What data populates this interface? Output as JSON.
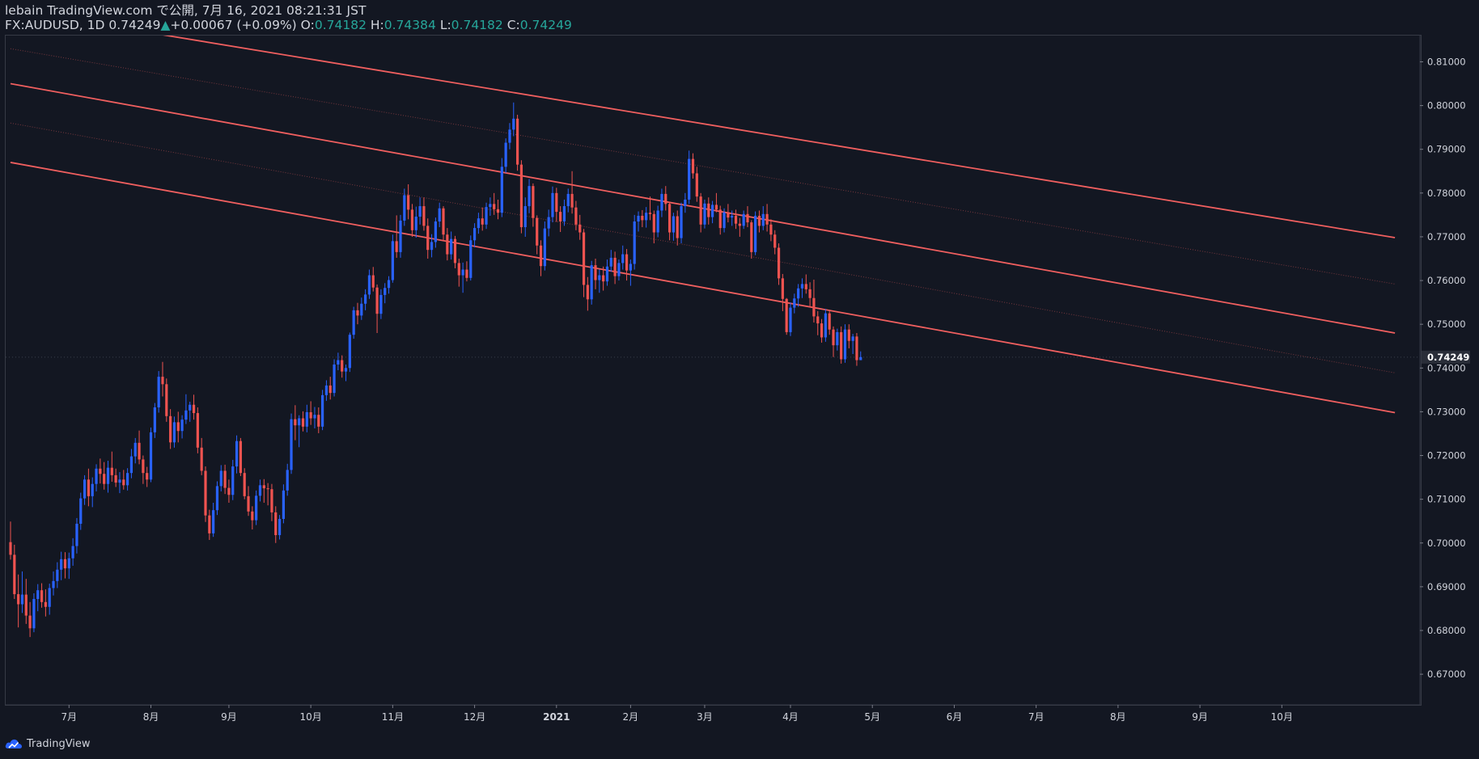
{
  "header": {
    "publisher_line": "lebain TradingView.com で公開, 7月 16, 2021 08:21:31 JST",
    "symbol": "FX:AUDUSD, 1D",
    "last": "0.74249",
    "change_arrow": "▲",
    "change": "+0.00067 (+0.09%)",
    "o_label": "O:",
    "o_value": "0.74182",
    "h_label": "H:",
    "h_value": "0.74384",
    "l_label": "L:",
    "l_value": "0.74182",
    "c_label": "C:",
    "c_value": "0.74249"
  },
  "footer": {
    "brand": "TradingView",
    "logo_icon": "tradingview-cloud-icon"
  },
  "colors": {
    "background": "#131722",
    "up": "#2962ff",
    "down": "#ef5350",
    "channel": "#f05f5f",
    "text": "#d1d4dc",
    "accent": "#26a69a",
    "grid": "#363a45"
  },
  "chart_data": {
    "type": "candlestick",
    "symbol": "FX:AUDUSD",
    "interval": "1D",
    "ylim": [
      0.663,
      0.816
    ],
    "y_ticks": [
      "0.81000",
      "0.80000",
      "0.79000",
      "0.78000",
      "0.77000",
      "0.76000",
      "0.75000",
      "0.74000",
      "0.73000",
      "0.72000",
      "0.71000",
      "0.70000",
      "0.69000",
      "0.68000",
      "0.67000"
    ],
    "x_ticks": [
      "7月",
      "8月",
      "9月",
      "10月",
      "11月",
      "12月",
      "2021",
      "2月",
      "3月",
      "4月",
      "5月",
      "6月",
      "7月",
      "8月",
      "9月",
      "10月"
    ],
    "x_tick_index": [
      15,
      36,
      56,
      77,
      98,
      119,
      140,
      159,
      178,
      200,
      221,
      242,
      263,
      284,
      305,
      326
    ],
    "last_price_label": "0.74249",
    "last_price": 0.74249,
    "candles": [
      [
        0.7002,
        0.7049,
        0.6962,
        0.6973
      ],
      [
        0.6973,
        0.6996,
        0.6872,
        0.6883
      ],
      [
        0.6883,
        0.6928,
        0.6807,
        0.686
      ],
      [
        0.686,
        0.6935,
        0.684,
        0.6882
      ],
      [
        0.6882,
        0.6918,
        0.6815,
        0.6834
      ],
      [
        0.6834,
        0.6865,
        0.6785,
        0.6805
      ],
      [
        0.6805,
        0.6885,
        0.6796,
        0.6872
      ],
      [
        0.6872,
        0.6906,
        0.6844,
        0.6892
      ],
      [
        0.6892,
        0.6908,
        0.6852,
        0.6865
      ],
      [
        0.6865,
        0.6894,
        0.6832,
        0.6854
      ],
      [
        0.6854,
        0.6907,
        0.6836,
        0.6897
      ],
      [
        0.6897,
        0.6935,
        0.688,
        0.6913
      ],
      [
        0.6913,
        0.6956,
        0.6897,
        0.6939
      ],
      [
        0.6939,
        0.698,
        0.6915,
        0.6963
      ],
      [
        0.6963,
        0.6979,
        0.6919,
        0.6942
      ],
      [
        0.6942,
        0.6978,
        0.6918,
        0.6965
      ],
      [
        0.6965,
        0.7011,
        0.6948,
        0.6993
      ],
      [
        0.6993,
        0.7057,
        0.6976,
        0.7044
      ],
      [
        0.7044,
        0.7115,
        0.703,
        0.7102
      ],
      [
        0.7102,
        0.7155,
        0.7087,
        0.7145
      ],
      [
        0.7145,
        0.717,
        0.7084,
        0.7107
      ],
      [
        0.7107,
        0.715,
        0.7082,
        0.7135
      ],
      [
        0.7135,
        0.718,
        0.7118,
        0.717
      ],
      [
        0.717,
        0.7193,
        0.7136,
        0.7158
      ],
      [
        0.7158,
        0.7185,
        0.7122,
        0.7135
      ],
      [
        0.7135,
        0.7188,
        0.7115,
        0.7172
      ],
      [
        0.7172,
        0.7209,
        0.714,
        0.7155
      ],
      [
        0.7155,
        0.717,
        0.7128,
        0.7138
      ],
      [
        0.7138,
        0.7162,
        0.7114,
        0.7145
      ],
      [
        0.7145,
        0.7167,
        0.7122,
        0.7132
      ],
      [
        0.7132,
        0.7171,
        0.712,
        0.716
      ],
      [
        0.716,
        0.7215,
        0.7148,
        0.7198
      ],
      [
        0.7198,
        0.724,
        0.7182,
        0.7229
      ],
      [
        0.7229,
        0.7257,
        0.718,
        0.7191
      ],
      [
        0.7191,
        0.72,
        0.7135,
        0.716
      ],
      [
        0.716,
        0.7174,
        0.7128,
        0.7145
      ],
      [
        0.7145,
        0.7264,
        0.7139,
        0.7253
      ],
      [
        0.7253,
        0.732,
        0.724,
        0.731
      ],
      [
        0.731,
        0.7393,
        0.7298,
        0.738
      ],
      [
        0.738,
        0.7414,
        0.7335,
        0.7363
      ],
      [
        0.7363,
        0.7376,
        0.7277,
        0.729
      ],
      [
        0.729,
        0.7306,
        0.7215,
        0.723
      ],
      [
        0.723,
        0.7289,
        0.7218,
        0.7276
      ],
      [
        0.7276,
        0.73,
        0.723,
        0.7256
      ],
      [
        0.7256,
        0.7292,
        0.7239,
        0.7282
      ],
      [
        0.7282,
        0.734,
        0.7272,
        0.7303
      ],
      [
        0.7303,
        0.7323,
        0.7277,
        0.7316
      ],
      [
        0.7316,
        0.7339,
        0.7282,
        0.7297
      ],
      [
        0.7297,
        0.731,
        0.7205,
        0.7218
      ],
      [
        0.7218,
        0.724,
        0.7155,
        0.7165
      ],
      [
        0.7165,
        0.7175,
        0.7048,
        0.7063
      ],
      [
        0.7063,
        0.7076,
        0.7007,
        0.7022
      ],
      [
        0.7022,
        0.7092,
        0.7014,
        0.7075
      ],
      [
        0.7075,
        0.7141,
        0.7064,
        0.713
      ],
      [
        0.713,
        0.7178,
        0.7118,
        0.7165
      ],
      [
        0.7165,
        0.7179,
        0.7112,
        0.7126
      ],
      [
        0.7126,
        0.7145,
        0.7092,
        0.711
      ],
      [
        0.711,
        0.719,
        0.7098,
        0.7175
      ],
      [
        0.7175,
        0.7246,
        0.7159,
        0.7233
      ],
      [
        0.7233,
        0.724,
        0.7153,
        0.716
      ],
      [
        0.716,
        0.7171,
        0.71,
        0.7107
      ],
      [
        0.7107,
        0.713,
        0.7062,
        0.7072
      ],
      [
        0.7072,
        0.7084,
        0.7031,
        0.7052
      ],
      [
        0.7052,
        0.712,
        0.7041,
        0.7108
      ],
      [
        0.7108,
        0.7145,
        0.7095,
        0.7132
      ],
      [
        0.7132,
        0.7146,
        0.7092,
        0.7125
      ],
      [
        0.7125,
        0.7137,
        0.7086,
        0.7123
      ],
      [
        0.7123,
        0.7135,
        0.705,
        0.707
      ],
      [
        0.707,
        0.7084,
        0.7,
        0.7018
      ],
      [
        0.7018,
        0.7064,
        0.7008,
        0.7055
      ],
      [
        0.7055,
        0.7134,
        0.7045,
        0.712
      ],
      [
        0.712,
        0.7181,
        0.7108,
        0.7167
      ],
      [
        0.7167,
        0.7296,
        0.7158,
        0.7283
      ],
      [
        0.7283,
        0.7315,
        0.7235,
        0.7269
      ],
      [
        0.7269,
        0.7292,
        0.7219,
        0.7285
      ],
      [
        0.7285,
        0.7301,
        0.7255,
        0.7266
      ],
      [
        0.7266,
        0.7316,
        0.7253,
        0.7299
      ],
      [
        0.7299,
        0.7324,
        0.727,
        0.7285
      ],
      [
        0.7285,
        0.7311,
        0.7262,
        0.7293
      ],
      [
        0.7293,
        0.731,
        0.7251,
        0.7266
      ],
      [
        0.7266,
        0.735,
        0.7258,
        0.7338
      ],
      [
        0.7338,
        0.7372,
        0.7325,
        0.736
      ],
      [
        0.736,
        0.738,
        0.7328,
        0.7343
      ],
      [
        0.7343,
        0.742,
        0.7335,
        0.7408
      ],
      [
        0.7408,
        0.7435,
        0.7395,
        0.7418
      ],
      [
        0.7418,
        0.7429,
        0.7378,
        0.7392
      ],
      [
        0.7392,
        0.7408,
        0.737,
        0.74
      ],
      [
        0.74,
        0.7481,
        0.7391,
        0.7476
      ],
      [
        0.7476,
        0.754,
        0.7467,
        0.7532
      ],
      [
        0.7532,
        0.7549,
        0.75,
        0.752
      ],
      [
        0.752,
        0.7561,
        0.751,
        0.7547
      ],
      [
        0.7547,
        0.758,
        0.7532,
        0.7568
      ],
      [
        0.7568,
        0.7625,
        0.7558,
        0.7612
      ],
      [
        0.7612,
        0.7631,
        0.7575,
        0.7584
      ],
      [
        0.7584,
        0.7591,
        0.748,
        0.7524
      ],
      [
        0.7524,
        0.758,
        0.7512,
        0.7567
      ],
      [
        0.7567,
        0.7594,
        0.7548,
        0.7583
      ],
      [
        0.7583,
        0.761,
        0.757,
        0.7601
      ],
      [
        0.7601,
        0.7705,
        0.7595,
        0.769
      ],
      [
        0.769,
        0.7749,
        0.7652,
        0.7665
      ],
      [
        0.7665,
        0.775,
        0.7652,
        0.7737
      ],
      [
        0.7737,
        0.781,
        0.7725,
        0.7795
      ],
      [
        0.7795,
        0.782,
        0.774,
        0.7762
      ],
      [
        0.7762,
        0.7775,
        0.77,
        0.7715
      ],
      [
        0.7715,
        0.7769,
        0.7698,
        0.7746
      ],
      [
        0.7746,
        0.779,
        0.7728,
        0.777
      ],
      [
        0.777,
        0.779,
        0.7714,
        0.7725
      ],
      [
        0.7725,
        0.7742,
        0.765,
        0.767
      ],
      [
        0.767,
        0.7706,
        0.7653,
        0.7688
      ],
      [
        0.7688,
        0.7744,
        0.7675,
        0.7735
      ],
      [
        0.7735,
        0.7778,
        0.7722,
        0.7765
      ],
      [
        0.7765,
        0.777,
        0.7691,
        0.7705
      ],
      [
        0.7705,
        0.772,
        0.7646,
        0.766
      ],
      [
        0.766,
        0.7712,
        0.7648,
        0.7695
      ],
      [
        0.7695,
        0.7702,
        0.7628,
        0.764
      ],
      [
        0.764,
        0.765,
        0.7586,
        0.7612
      ],
      [
        0.7612,
        0.7641,
        0.7572,
        0.7625
      ],
      [
        0.7625,
        0.7644,
        0.7598,
        0.7606
      ],
      [
        0.7606,
        0.7703,
        0.76,
        0.7692
      ],
      [
        0.7692,
        0.7731,
        0.7676,
        0.772
      ],
      [
        0.772,
        0.7755,
        0.7707,
        0.7742
      ],
      [
        0.7742,
        0.7767,
        0.7714,
        0.7728
      ],
      [
        0.7728,
        0.7778,
        0.7718,
        0.7768
      ],
      [
        0.7768,
        0.779,
        0.7748,
        0.7775
      ],
      [
        0.7775,
        0.78,
        0.775,
        0.7763
      ],
      [
        0.7763,
        0.7785,
        0.774,
        0.7755
      ],
      [
        0.7755,
        0.788,
        0.7745,
        0.786
      ],
      [
        0.786,
        0.7925,
        0.7846,
        0.7915
      ],
      [
        0.7915,
        0.796,
        0.79,
        0.7945
      ],
      [
        0.7945,
        0.8007,
        0.793,
        0.797
      ],
      [
        0.797,
        0.7979,
        0.7851,
        0.7865
      ],
      [
        0.7865,
        0.7875,
        0.7708,
        0.7722
      ],
      [
        0.7722,
        0.779,
        0.77,
        0.777
      ],
      [
        0.777,
        0.7832,
        0.7754,
        0.7816
      ],
      [
        0.7816,
        0.7822,
        0.7723,
        0.7743
      ],
      [
        0.7743,
        0.7749,
        0.766,
        0.768
      ],
      [
        0.768,
        0.7692,
        0.761,
        0.7633
      ],
      [
        0.7633,
        0.7735,
        0.7623,
        0.7719
      ],
      [
        0.7719,
        0.7762,
        0.7701,
        0.7745
      ],
      [
        0.7745,
        0.7815,
        0.7733,
        0.78
      ],
      [
        0.78,
        0.7812,
        0.7734,
        0.7757
      ],
      [
        0.7757,
        0.777,
        0.7711,
        0.7735
      ],
      [
        0.7735,
        0.7785,
        0.7725,
        0.777
      ],
      [
        0.777,
        0.781,
        0.7756,
        0.7798
      ],
      [
        0.7798,
        0.785,
        0.7753,
        0.7767
      ],
      [
        0.7767,
        0.7782,
        0.7715,
        0.7728
      ],
      [
        0.7728,
        0.775,
        0.7693,
        0.771
      ],
      [
        0.771,
        0.7718,
        0.7562,
        0.759
      ],
      [
        0.759,
        0.7608,
        0.7531,
        0.7557
      ],
      [
        0.7557,
        0.7645,
        0.7545,
        0.7635
      ],
      [
        0.7635,
        0.765,
        0.758,
        0.7601
      ],
      [
        0.7601,
        0.7625,
        0.7572,
        0.7612
      ],
      [
        0.7612,
        0.7632,
        0.7577,
        0.7598
      ],
      [
        0.7598,
        0.7648,
        0.7588,
        0.7632
      ],
      [
        0.7632,
        0.767,
        0.762,
        0.7652
      ],
      [
        0.7652,
        0.7666,
        0.7592,
        0.761
      ],
      [
        0.761,
        0.7648,
        0.76,
        0.764
      ],
      [
        0.764,
        0.768,
        0.7625,
        0.766
      ],
      [
        0.766,
        0.7672,
        0.76,
        0.7623
      ],
      [
        0.7623,
        0.7648,
        0.7588,
        0.7638
      ],
      [
        0.7638,
        0.775,
        0.7625,
        0.7735
      ],
      [
        0.7735,
        0.7758,
        0.7712,
        0.7748
      ],
      [
        0.7748,
        0.7761,
        0.7722,
        0.7738
      ],
      [
        0.7738,
        0.7768,
        0.7721,
        0.7755
      ],
      [
        0.7755,
        0.7792,
        0.7738,
        0.7752
      ],
      [
        0.7752,
        0.776,
        0.7685,
        0.771
      ],
      [
        0.771,
        0.7771,
        0.7699,
        0.776
      ],
      [
        0.776,
        0.781,
        0.7745,
        0.7798
      ],
      [
        0.7798,
        0.7816,
        0.776,
        0.7775
      ],
      [
        0.7775,
        0.778,
        0.7692,
        0.771
      ],
      [
        0.771,
        0.7755,
        0.7691,
        0.7747
      ],
      [
        0.7747,
        0.776,
        0.768,
        0.7697
      ],
      [
        0.7697,
        0.7778,
        0.7685,
        0.777
      ],
      [
        0.777,
        0.78,
        0.7755,
        0.7785
      ],
      [
        0.7785,
        0.7897,
        0.7775,
        0.7878
      ],
      [
        0.7878,
        0.7891,
        0.7833,
        0.7845
      ],
      [
        0.7845,
        0.786,
        0.778,
        0.7792
      ],
      [
        0.7792,
        0.78,
        0.771,
        0.7728
      ],
      [
        0.7728,
        0.7785,
        0.7719,
        0.7776
      ],
      [
        0.7776,
        0.779,
        0.7728,
        0.7745
      ],
      [
        0.7745,
        0.7782,
        0.7731,
        0.7773
      ],
      [
        0.7773,
        0.78,
        0.7756,
        0.7762
      ],
      [
        0.7762,
        0.7771,
        0.7705,
        0.772
      ],
      [
        0.772,
        0.7765,
        0.771,
        0.7756
      ],
      [
        0.7756,
        0.7775,
        0.7733,
        0.7744
      ],
      [
        0.7744,
        0.776,
        0.7725,
        0.7748
      ],
      [
        0.7748,
        0.7762,
        0.7718,
        0.773
      ],
      [
        0.773,
        0.7743,
        0.77,
        0.7725
      ],
      [
        0.7725,
        0.776,
        0.7718,
        0.7752
      ],
      [
        0.7752,
        0.777,
        0.7722,
        0.7733
      ],
      [
        0.7733,
        0.7738,
        0.765,
        0.7665
      ],
      [
        0.7665,
        0.7758,
        0.7658,
        0.7748
      ],
      [
        0.7748,
        0.776,
        0.771,
        0.7725
      ],
      [
        0.7725,
        0.777,
        0.7715,
        0.7752
      ],
      [
        0.7752,
        0.7775,
        0.7712,
        0.7728
      ],
      [
        0.7728,
        0.774,
        0.769,
        0.7705
      ],
      [
        0.7705,
        0.7715,
        0.766,
        0.7675
      ],
      [
        0.7675,
        0.7685,
        0.759,
        0.7605
      ],
      [
        0.7605,
        0.7615,
        0.753,
        0.7558
      ],
      [
        0.7558,
        0.756,
        0.7476,
        0.7482
      ],
      [
        0.7482,
        0.755,
        0.7473,
        0.7538
      ],
      [
        0.7538,
        0.757,
        0.7525,
        0.7559
      ],
      [
        0.7559,
        0.7592,
        0.754,
        0.7582
      ],
      [
        0.7582,
        0.7605,
        0.756,
        0.7592
      ],
      [
        0.7592,
        0.7614,
        0.757,
        0.758
      ],
      [
        0.758,
        0.7596,
        0.754,
        0.756
      ],
      [
        0.756,
        0.7602,
        0.7504,
        0.7518
      ],
      [
        0.7518,
        0.753,
        0.7475,
        0.7502
      ],
      [
        0.7502,
        0.7512,
        0.7458,
        0.747
      ],
      [
        0.747,
        0.7535,
        0.746,
        0.7525
      ],
      [
        0.7525,
        0.753,
        0.7476,
        0.7488
      ],
      [
        0.7488,
        0.7495,
        0.7425,
        0.7452
      ],
      [
        0.7452,
        0.749,
        0.744,
        0.7482
      ],
      [
        0.7482,
        0.7495,
        0.741,
        0.742
      ],
      [
        0.742,
        0.75,
        0.7412,
        0.7488
      ],
      [
        0.7488,
        0.75,
        0.7445,
        0.7462
      ],
      [
        0.7462,
        0.7478,
        0.7432,
        0.7472
      ],
      [
        0.7472,
        0.748,
        0.7405,
        0.7418
      ],
      [
        0.7418,
        0.7438,
        0.7418,
        0.7425
      ]
    ],
    "channel_lines": [
      {
        "style": "solid",
        "from": [
          0,
          0.8219
        ],
        "to": [
          355,
          0.7698
        ]
      },
      {
        "style": "dotted",
        "from": [
          0,
          0.813
        ],
        "to": [
          355,
          0.7592
        ]
      },
      {
        "style": "solid",
        "from": [
          0,
          0.805
        ],
        "to": [
          355,
          0.748
        ]
      },
      {
        "style": "dotted",
        "from": [
          0,
          0.796
        ],
        "to": [
          355,
          0.7389
        ]
      },
      {
        "style": "solid",
        "from": [
          0,
          0.787
        ],
        "to": [
          355,
          0.7298
        ]
      }
    ]
  }
}
